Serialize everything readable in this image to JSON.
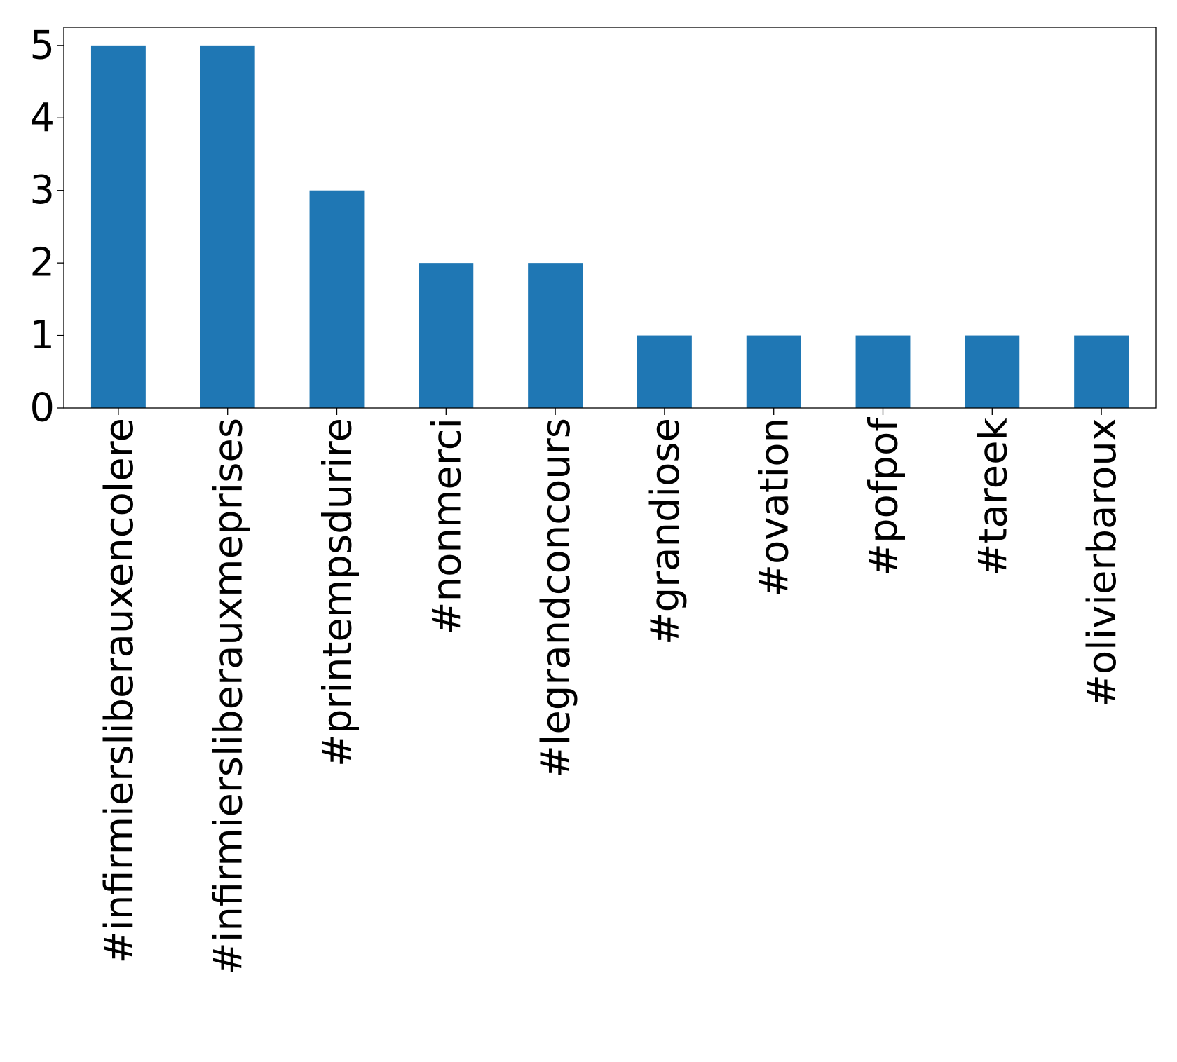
{
  "chart_data": {
    "type": "bar",
    "title": "",
    "xlabel": "",
    "ylabel": "",
    "categories": [
      "#infirmiersliberauxencolere",
      "#infirmiersliberauxmeprises",
      "#printempsdurire",
      "#nonmerci",
      "#legrandconcours",
      "#grandiose",
      "#ovation",
      "#pofpof",
      "#tareek",
      "#olivierbaroux"
    ],
    "values": [
      5,
      5,
      3,
      2,
      2,
      1,
      1,
      1,
      1,
      1
    ],
    "ylim": [
      0,
      5.25
    ],
    "yticks": [
      0,
      1,
      2,
      3,
      4,
      5
    ],
    "grid": false,
    "legend": "none",
    "colors": {
      "bar": "#1f77b4",
      "axis": "#000000",
      "background": "#ffffff"
    }
  }
}
